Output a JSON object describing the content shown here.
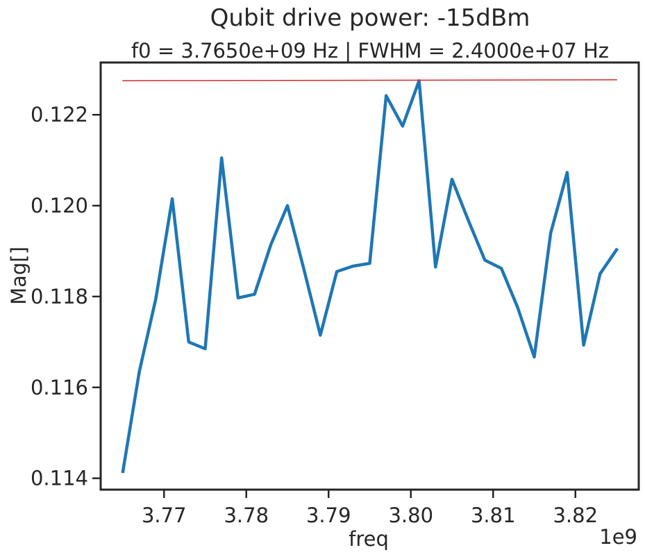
{
  "chart_data": {
    "type": "line",
    "suptitle": "Qubit drive power: -15dBm",
    "title": "f0 = 3.7650e+09 Hz | FWHM = 2.4000e+07 Hz",
    "xlabel": "freq",
    "ylabel": "Mag[]",
    "x_offset_label": "1e9",
    "xlim": [
      3.7623,
      3.8277
    ],
    "ylim": [
      0.11375,
      0.12315
    ],
    "x_ticks": [
      3.77,
      3.78,
      3.79,
      3.8,
      3.81,
      3.82
    ],
    "x_tick_labels": [
      "3.77",
      "3.78",
      "3.79",
      "3.80",
      "3.81",
      "3.82"
    ],
    "y_ticks": [
      0.114,
      0.116,
      0.118,
      0.12,
      0.122
    ],
    "y_tick_labels": [
      "0.114",
      "0.116",
      "0.118",
      "0.120",
      "0.122"
    ],
    "grid": false,
    "series": [
      {
        "color": "#1f77b4",
        "x": [
          3.765,
          3.767,
          3.769,
          3.771,
          3.773,
          3.775,
          3.777,
          3.779,
          3.781,
          3.783,
          3.785,
          3.787,
          3.789,
          3.791,
          3.793,
          3.795,
          3.797,
          3.799,
          3.801,
          3.803,
          3.805,
          3.807,
          3.809,
          3.811,
          3.813,
          3.815,
          3.817,
          3.819,
          3.821,
          3.823,
          3.825
        ],
        "y": [
          0.11415,
          0.11635,
          0.11795,
          0.12015,
          0.117,
          0.11685,
          0.12105,
          0.11797,
          0.11805,
          0.11915,
          0.12,
          0.1186,
          0.11715,
          0.11855,
          0.11867,
          0.11873,
          0.12242,
          0.12175,
          0.12275,
          0.11865,
          0.12058,
          0.11967,
          0.1188,
          0.11862,
          0.11775,
          0.11667,
          0.1194,
          0.12073,
          0.11693,
          0.1185,
          0.11903
        ]
      },
      {
        "color": "#d62728",
        "x": [
          3.765,
          3.825
        ],
        "y": [
          0.12275,
          0.12277
        ]
      }
    ]
  }
}
